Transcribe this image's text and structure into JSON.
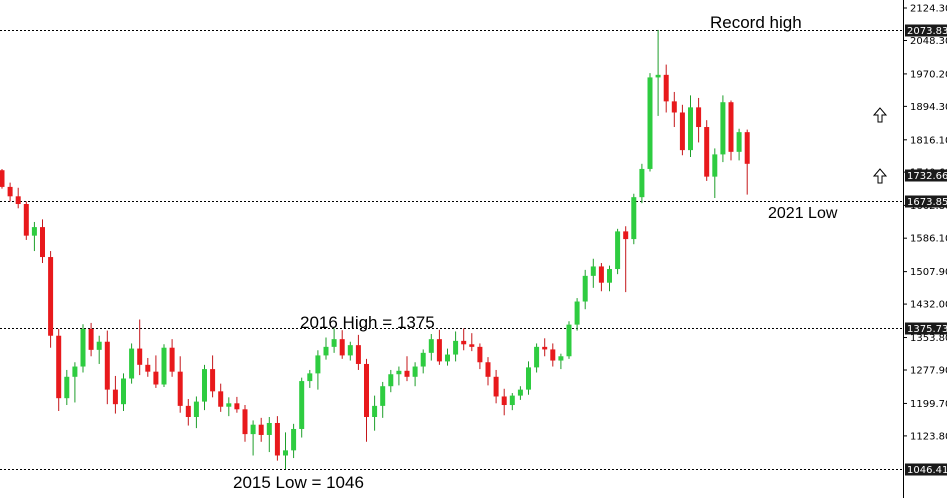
{
  "chart_data": {
    "type": "candlestick",
    "ylim": [
      1046.41,
      2124.3
    ],
    "grid": false,
    "colors": {
      "up": "#2ecc40",
      "down": "#e8191c",
      "wick_up": "#1e9e2a",
      "wick_down": "#c4161a",
      "level_line": "#000000",
      "badge": "#1a1a1a"
    },
    "y_ticks": [
      "2124.30",
      "2048.30",
      "1970.20",
      "1894.30",
      "1816.10",
      "1740.60",
      "1662.80",
      "1586.10",
      "1507.90",
      "1432.00",
      "1353.80",
      "1277.90",
      "1199.70",
      "1123.80"
    ],
    "levels": [
      {
        "value": 2073.83,
        "label": "2073.83"
      },
      {
        "value": 1732.66,
        "label": "1732.66",
        "dotted": false
      },
      {
        "value": 1673.85,
        "label": "1673.85"
      },
      {
        "value": 1375.73,
        "label": "1375.73"
      },
      {
        "value": 1046.41,
        "label": "1046.41"
      }
    ],
    "annotations": [
      {
        "text": "Record high"
      },
      {
        "text": "2016 High = 1375"
      },
      {
        "text": "2021 Low"
      },
      {
        "text": "2015 Low = 1046"
      }
    ],
    "arrows": [
      "up-arrow",
      "up-arrow"
    ],
    "candles": [
      [
        1745,
        1748,
        1702,
        1706
      ],
      [
        1706,
        1716,
        1672,
        1684
      ],
      [
        1684,
        1704,
        1656,
        1666
      ],
      [
        1666,
        1672,
        1582,
        1592
      ],
      [
        1592,
        1624,
        1556,
        1612
      ],
      [
        1612,
        1630,
        1528,
        1542
      ],
      [
        1542,
        1556,
        1330,
        1358
      ],
      [
        1358,
        1374,
        1182,
        1212
      ],
      [
        1212,
        1278,
        1196,
        1262
      ],
      [
        1262,
        1296,
        1202,
        1286
      ],
      [
        1286,
        1385,
        1272,
        1374
      ],
      [
        1374,
        1388,
        1310,
        1325
      ],
      [
        1325,
        1358,
        1292,
        1344
      ],
      [
        1344,
        1370,
        1198,
        1232
      ],
      [
        1232,
        1264,
        1176,
        1198
      ],
      [
        1198,
        1270,
        1182,
        1258
      ],
      [
        1258,
        1340,
        1246,
        1328
      ],
      [
        1328,
        1396,
        1266,
        1290
      ],
      [
        1290,
        1306,
        1262,
        1274
      ],
      [
        1274,
        1312,
        1236,
        1244
      ],
      [
        1244,
        1338,
        1238,
        1330
      ],
      [
        1330,
        1350,
        1262,
        1274
      ],
      [
        1274,
        1310,
        1178,
        1194
      ],
      [
        1194,
        1210,
        1148,
        1168
      ],
      [
        1168,
        1216,
        1142,
        1204
      ],
      [
        1204,
        1290,
        1184,
        1280
      ],
      [
        1280,
        1312,
        1214,
        1228
      ],
      [
        1228,
        1246,
        1180,
        1192
      ],
      [
        1192,
        1214,
        1170,
        1200
      ],
      [
        1200,
        1215,
        1178,
        1186
      ],
      [
        1186,
        1196,
        1110,
        1128
      ],
      [
        1128,
        1160,
        1078,
        1150
      ],
      [
        1150,
        1166,
        1110,
        1126
      ],
      [
        1126,
        1168,
        1086,
        1154
      ],
      [
        1154,
        1170,
        1066,
        1078
      ],
      [
        1078,
        1132,
        1046,
        1090
      ],
      [
        1090,
        1152,
        1072,
        1140
      ],
      [
        1140,
        1260,
        1120,
        1252
      ],
      [
        1252,
        1278,
        1236,
        1270
      ],
      [
        1270,
        1324,
        1232,
        1312
      ],
      [
        1312,
        1354,
        1302,
        1332
      ],
      [
        1332,
        1375,
        1318,
        1350
      ],
      [
        1350,
        1371,
        1304,
        1312
      ],
      [
        1312,
        1344,
        1300,
        1336
      ],
      [
        1336,
        1360,
        1278,
        1292
      ],
      [
        1292,
        1304,
        1110,
        1168
      ],
      [
        1168,
        1218,
        1136,
        1194
      ],
      [
        1194,
        1250,
        1166,
        1240
      ],
      [
        1240,
        1278,
        1226,
        1268
      ],
      [
        1268,
        1286,
        1242,
        1276
      ],
      [
        1276,
        1310,
        1252,
        1262
      ],
      [
        1262,
        1296,
        1240,
        1286
      ],
      [
        1286,
        1326,
        1270,
        1318
      ],
      [
        1318,
        1362,
        1300,
        1350
      ],
      [
        1350,
        1372,
        1290,
        1298
      ],
      [
        1298,
        1328,
        1288,
        1314
      ],
      [
        1314,
        1368,
        1298,
        1346
      ],
      [
        1346,
        1375,
        1324,
        1338
      ],
      [
        1338,
        1364,
        1322,
        1332
      ],
      [
        1332,
        1340,
        1280,
        1296
      ],
      [
        1296,
        1308,
        1242,
        1262
      ],
      [
        1262,
        1278,
        1200,
        1216
      ],
      [
        1216,
        1234,
        1172,
        1196
      ],
      [
        1196,
        1224,
        1184,
        1218
      ],
      [
        1218,
        1240,
        1208,
        1232
      ],
      [
        1232,
        1298,
        1220,
        1284
      ],
      [
        1284,
        1340,
        1272,
        1332
      ],
      [
        1332,
        1352,
        1310,
        1326
      ],
      [
        1326,
        1340,
        1286,
        1300
      ],
      [
        1300,
        1316,
        1280,
        1310
      ],
      [
        1310,
        1392,
        1304,
        1384
      ],
      [
        1384,
        1446,
        1370,
        1438
      ],
      [
        1438,
        1512,
        1420,
        1498
      ],
      [
        1498,
        1538,
        1470,
        1520
      ],
      [
        1520,
        1528,
        1462,
        1482
      ],
      [
        1482,
        1522,
        1462,
        1514
      ],
      [
        1514,
        1608,
        1502,
        1602
      ],
      [
        1602,
        1614,
        1460,
        1584
      ],
      [
        1584,
        1690,
        1572,
        1682
      ],
      [
        1682,
        1760,
        1668,
        1748
      ],
      [
        1748,
        1972,
        1742,
        1962
      ],
      [
        1962,
        2073,
        1872,
        1968
      ],
      [
        1968,
        1992,
        1880,
        1906
      ],
      [
        1906,
        1928,
        1846,
        1880
      ],
      [
        1880,
        1898,
        1780,
        1792
      ],
      [
        1792,
        1920,
        1776,
        1892
      ],
      [
        1892,
        1914,
        1810,
        1846
      ],
      [
        1846,
        1862,
        1720,
        1730
      ],
      [
        1730,
        1796,
        1680,
        1782
      ],
      [
        1782,
        1920,
        1764,
        1904
      ],
      [
        1904,
        1908,
        1768,
        1788
      ],
      [
        1788,
        1842,
        1768,
        1834
      ],
      [
        1834,
        1840,
        1688,
        1760
      ]
    ]
  }
}
